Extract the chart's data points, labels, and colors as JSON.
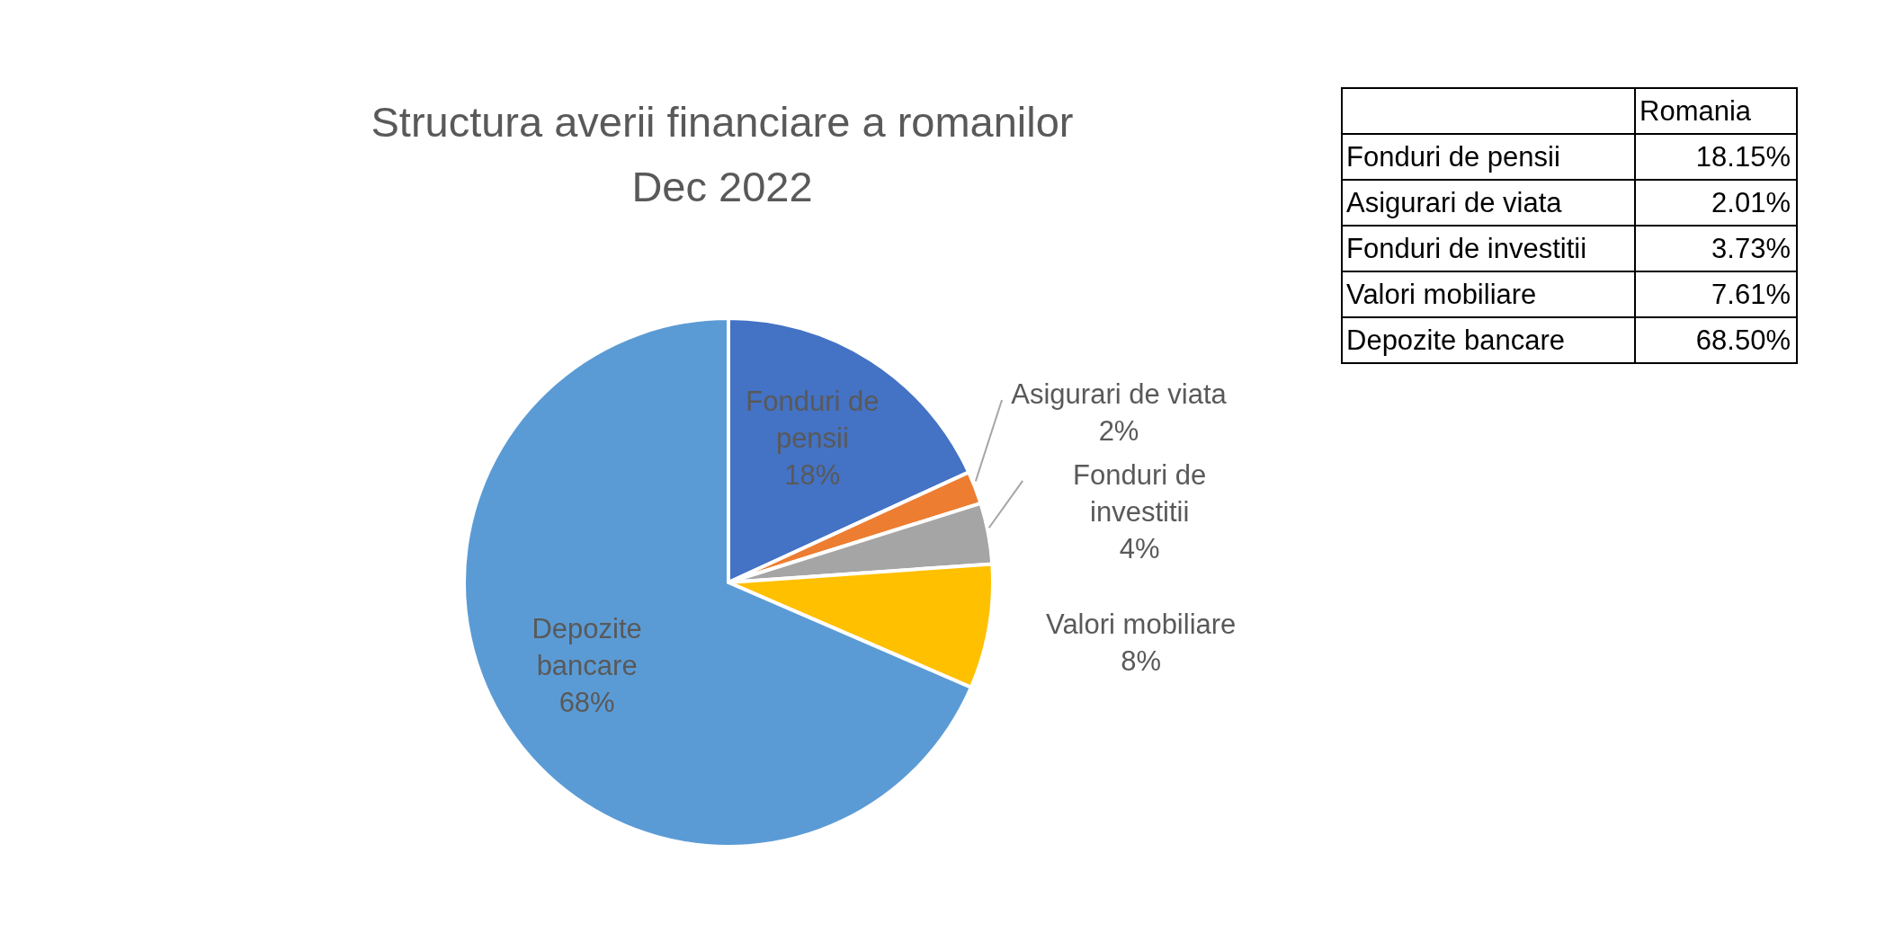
{
  "chart_data": {
    "type": "pie",
    "title": "Structura averii financiare a romanilor\nDec 2022",
    "categories": [
      "Fonduri de pensii",
      "Asigurari de viata",
      "Fonduri de investitii",
      "Valori mobiliare",
      "Depozite bancare"
    ],
    "series": [
      {
        "name": "Romania",
        "values": [
          18.15,
          2.01,
          3.73,
          7.61,
          68.5
        ]
      }
    ],
    "colors": [
      "#4472c4",
      "#ed7d31",
      "#a5a5a5",
      "#ffc000",
      "#5b9bd5"
    ],
    "value_labels": [
      "18%",
      "2%",
      "4%",
      "8%",
      "68%"
    ],
    "annotations": [
      "18.15%",
      "2.01%",
      "3.73%",
      "7.61%",
      "68.50%"
    ]
  }
}
